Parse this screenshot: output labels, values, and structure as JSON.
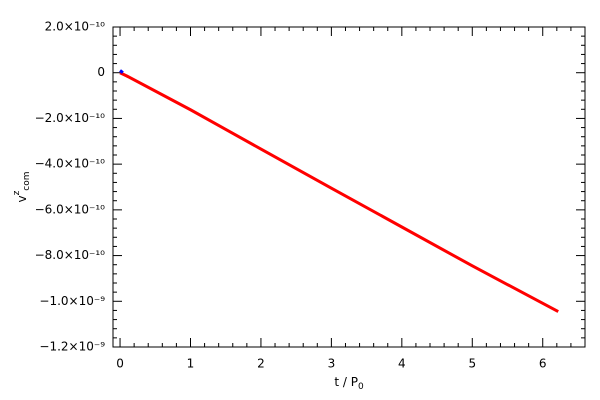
{
  "chart_data": {
    "type": "line",
    "x_label": {
      "base": "t / P",
      "sub": "0"
    },
    "y_label": {
      "base": "v",
      "sup": "z",
      "sub": "com"
    },
    "xlim": [
      -0.1,
      6.6
    ],
    "xticks": [
      0,
      1,
      2,
      3,
      4,
      5,
      6
    ],
    "ylim": [
      -1.2e-09,
      2e-10
    ],
    "yticks": [
      {
        "value": 2e-10,
        "label": "2.0×10⁻¹⁰"
      },
      0,
      {
        "value": -2e-10,
        "label": "−2.0×10⁻¹⁰"
      },
      {
        "value": -4e-10,
        "label": "−4.0×10⁻¹⁰"
      },
      {
        "value": -6e-10,
        "label": "−6.0×10⁻¹⁰"
      },
      {
        "value": -8e-10,
        "label": "−8.0×10⁻¹⁰"
      },
      {
        "value": -1e-09,
        "label": "−1.0×10⁻⁹"
      },
      {
        "value": -1.2e-09,
        "label": "−1.2×10⁻⁹"
      }
    ],
    "series": [
      {
        "color": "#0000ff",
        "x": [
          0,
          0.02,
          0.04
        ],
        "values": [
          1e-11,
          5e-12,
          0
        ]
      },
      {
        "color": "#ff0000",
        "x": [
          0,
          0.1,
          1,
          2,
          3,
          4,
          5,
          6.22
        ],
        "values": [
          0,
          -1.5e-11,
          -1.62e-10,
          -3.34e-10,
          -5.05e-10,
          -6.75e-10,
          -8.45e-10,
          -1.045e-09
        ]
      }
    ]
  }
}
